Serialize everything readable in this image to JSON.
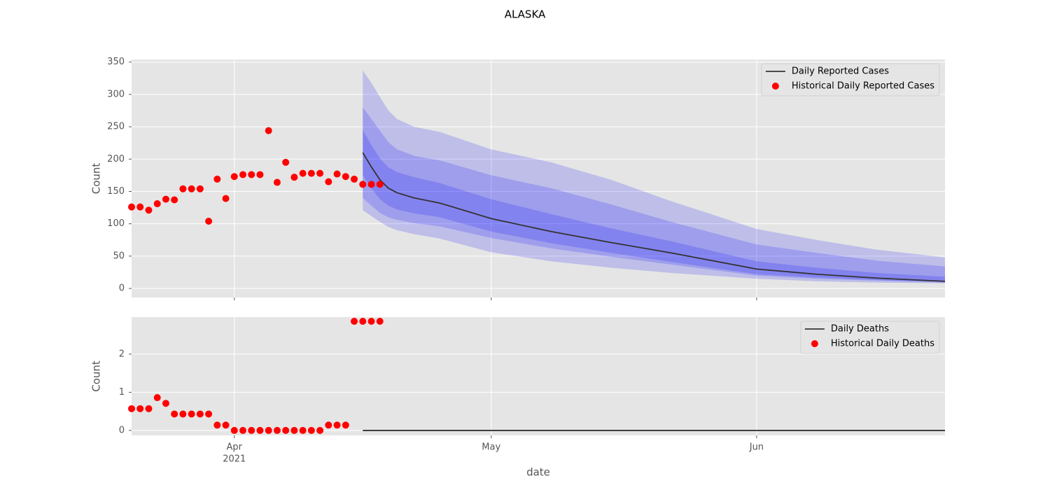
{
  "title": "ALASKA",
  "chart_data": [
    {
      "type": "line",
      "ylabel": "Count",
      "xlim": [
        "2021-03-20",
        "2021-06-23"
      ],
      "xticks": [
        "2021-04-01",
        "2021-05-01",
        "2021-06-01"
      ],
      "ylim": [
        -14,
        354
      ],
      "yticks": [
        0,
        50,
        100,
        150,
        200,
        250,
        300,
        350
      ],
      "grid": true,
      "legend": "upper right",
      "band_color": "#0000ff",
      "band_x": [
        "2021-04-16",
        "2021-04-17",
        "2021-04-18",
        "2021-04-19",
        "2021-04-20",
        "2021-04-22",
        "2021-04-25",
        "2021-05-01",
        "2021-05-08",
        "2021-05-15",
        "2021-05-22",
        "2021-06-01",
        "2021-06-08",
        "2021-06-15",
        "2021-06-23"
      ],
      "bands": [
        {
          "upper": [
            337,
            318,
            296,
            275,
            262,
            250,
            242,
            215,
            195,
            168,
            135,
            92,
            75,
            60,
            48
          ],
          "lower": [
            121,
            112,
            103,
            95,
            90,
            84,
            77,
            56,
            42,
            32,
            24,
            15,
            11,
            9,
            8
          ]
        },
        {
          "upper": [
            280,
            262,
            244,
            226,
            215,
            205,
            198,
            175,
            155,
            130,
            103,
            68,
            55,
            43,
            34
          ],
          "lower": [
            140,
            128,
            117,
            110,
            106,
            101,
            96,
            78,
            62,
            49,
            37,
            20,
            15,
            12,
            9
          ]
        },
        {
          "upper": [
            245,
            222,
            201,
            187,
            180,
            172,
            163,
            138,
            115,
            93,
            73,
            42,
            32,
            24,
            18
          ],
          "lower": [
            175,
            155,
            138,
            128,
            122,
            116,
            110,
            88,
            70,
            55,
            41,
            22,
            17,
            13,
            10
          ]
        }
      ],
      "series": [
        {
          "name": "Daily Reported Cases",
          "kind": "line",
          "color": "#333333",
          "x": [
            "2021-04-16",
            "2021-04-17",
            "2021-04-18",
            "2021-04-19",
            "2021-04-20",
            "2021-04-22",
            "2021-04-25",
            "2021-05-01",
            "2021-05-08",
            "2021-05-15",
            "2021-05-22",
            "2021-06-01",
            "2021-06-08",
            "2021-06-15",
            "2021-06-23"
          ],
          "values": [
            210,
            188,
            168,
            155,
            148,
            140,
            132,
            108,
            88,
            71,
            55,
            30,
            22,
            16,
            11
          ]
        },
        {
          "name": "Historical Daily Reported Cases",
          "kind": "scatter",
          "color": "#ff0000",
          "x": [
            "2021-03-20",
            "2021-03-21",
            "2021-03-22",
            "2021-03-23",
            "2021-03-24",
            "2021-03-25",
            "2021-03-26",
            "2021-03-27",
            "2021-03-28",
            "2021-03-29",
            "2021-03-30",
            "2021-03-31",
            "2021-04-01",
            "2021-04-02",
            "2021-04-03",
            "2021-04-04",
            "2021-04-05",
            "2021-04-06",
            "2021-04-07",
            "2021-04-08",
            "2021-04-09",
            "2021-04-10",
            "2021-04-11",
            "2021-04-12",
            "2021-04-13",
            "2021-04-14",
            "2021-04-15",
            "2021-04-16",
            "2021-04-17",
            "2021-04-18"
          ],
          "values": [
            126,
            126,
            121,
            131,
            138,
            137,
            154,
            154,
            154,
            104,
            169,
            139,
            173,
            176,
            176,
            176,
            244,
            164,
            195,
            172,
            178,
            178,
            178,
            165,
            177,
            173,
            169,
            161,
            161,
            161
          ]
        }
      ]
    },
    {
      "type": "line",
      "ylabel": "Count",
      "xlabel": "date",
      "xlim": [
        "2021-03-20",
        "2021-06-23"
      ],
      "xticks": [
        {
          "value": "2021-04-01",
          "label": "Apr"
        },
        {
          "value": "2021-05-01",
          "label": "May"
        },
        {
          "value": "2021-06-01",
          "label": "Jun"
        }
      ],
      "x_offset_label": "2021",
      "ylim": [
        -0.13,
        2.97
      ],
      "yticks": [
        0,
        1,
        2
      ],
      "grid": true,
      "legend": "upper right",
      "series": [
        {
          "name": "Daily Deaths",
          "kind": "line",
          "color": "#333333",
          "x": [
            "2021-04-16",
            "2021-06-23"
          ],
          "values": [
            0,
            0
          ]
        },
        {
          "name": "Historical Daily Deaths",
          "kind": "scatter",
          "color": "#ff0000",
          "x": [
            "2021-03-20",
            "2021-03-21",
            "2021-03-22",
            "2021-03-23",
            "2021-03-24",
            "2021-03-25",
            "2021-03-26",
            "2021-03-27",
            "2021-03-28",
            "2021-03-29",
            "2021-03-30",
            "2021-03-31",
            "2021-04-01",
            "2021-04-02",
            "2021-04-03",
            "2021-04-04",
            "2021-04-05",
            "2021-04-06",
            "2021-04-07",
            "2021-04-08",
            "2021-04-09",
            "2021-04-10",
            "2021-04-11",
            "2021-04-12",
            "2021-04-13",
            "2021-04-14",
            "2021-04-15",
            "2021-04-16",
            "2021-04-17",
            "2021-04-18"
          ],
          "values": [
            0.57,
            0.57,
            0.57,
            0.86,
            0.71,
            0.43,
            0.43,
            0.43,
            0.43,
            0.43,
            0.14,
            0.14,
            0,
            0,
            0,
            0,
            0,
            0,
            0,
            0,
            0,
            0,
            0,
            0.14,
            0.14,
            0.14,
            2.86,
            2.86,
            2.86,
            2.86
          ]
        }
      ]
    }
  ]
}
